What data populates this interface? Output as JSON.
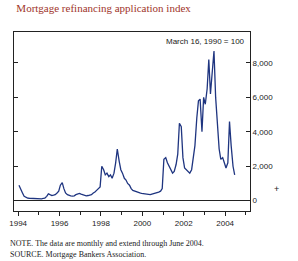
{
  "chart_data": {
    "type": "line",
    "title": "Mortgage refinancing application index",
    "subtitle": "March 16, 1990 = 100",
    "color": "#1f3580",
    "x": [
      1994.04,
      1994.13,
      1994.21,
      1994.29,
      1994.38,
      1994.46,
      1994.54,
      1994.63,
      1994.71,
      1994.79,
      1994.88,
      1994.96,
      1995.04,
      1995.13,
      1995.21,
      1995.29,
      1995.38,
      1995.46,
      1995.54,
      1995.63,
      1995.71,
      1995.79,
      1995.88,
      1995.96,
      1996.04,
      1996.13,
      1996.21,
      1996.29,
      1996.38,
      1996.46,
      1996.54,
      1996.63,
      1996.71,
      1996.79,
      1996.88,
      1996.96,
      1997.04,
      1997.13,
      1997.21,
      1997.29,
      1997.38,
      1997.46,
      1997.54,
      1997.63,
      1997.71,
      1997.79,
      1997.88,
      1997.96,
      1998.04,
      1998.13,
      1998.21,
      1998.29,
      1998.38,
      1998.46,
      1998.54,
      1998.63,
      1998.71,
      1998.79,
      1998.88,
      1998.96,
      1999.04,
      1999.13,
      1999.21,
      1999.29,
      1999.38,
      1999.46,
      1999.54,
      1999.63,
      1999.71,
      1999.79,
      1999.88,
      1999.96,
      2000.04,
      2000.13,
      2000.21,
      2000.29,
      2000.38,
      2000.46,
      2000.54,
      2000.63,
      2000.71,
      2000.79,
      2000.88,
      2000.96,
      2001.04,
      2001.13,
      2001.21,
      2001.29,
      2001.38,
      2001.46,
      2001.54,
      2001.63,
      2001.71,
      2001.79,
      2001.88,
      2001.96,
      2002.04,
      2002.13,
      2002.21,
      2002.29,
      2002.38,
      2002.46,
      2002.54,
      2002.63,
      2002.71,
      2002.79,
      2002.88,
      2002.96,
      2003.04,
      2003.13,
      2003.21,
      2003.29,
      2003.38,
      2003.46,
      2003.54,
      2003.63,
      2003.71,
      2003.79,
      2003.88,
      2003.96,
      2004.04,
      2004.13,
      2004.21,
      2004.29,
      2004.38,
      2004.46
    ],
    "values": [
      900,
      700,
      450,
      250,
      180,
      150,
      140,
      130,
      120,
      110,
      100,
      100,
      100,
      110,
      130,
      150,
      250,
      400,
      350,
      300,
      320,
      350,
      450,
      550,
      900,
      1050,
      700,
      450,
      350,
      300,
      280,
      270,
      280,
      350,
      400,
      420,
      380,
      350,
      300,
      280,
      300,
      320,
      350,
      450,
      500,
      600,
      700,
      800,
      2000,
      1800,
      1500,
      1600,
      1400,
      1500,
      1300,
      1600,
      2200,
      3000,
      2300,
      1800,
      1600,
      1300,
      1200,
      1000,
      900,
      700,
      600,
      550,
      500,
      480,
      450,
      420,
      400,
      380,
      370,
      380,
      350,
      380,
      400,
      420,
      450,
      500,
      550,
      700,
      2400,
      2500,
      2200,
      2000,
      1800,
      1600,
      1700,
      2100,
      2700,
      4500,
      4300,
      2500,
      1900,
      1800,
      1700,
      1600,
      1800,
      2400,
      3200,
      4800,
      5800,
      5900,
      4000,
      6000,
      5600,
      6500,
      8200,
      6200,
      7500,
      8700,
      6000,
      4000,
      3000,
      2400,
      2500,
      2200,
      1900,
      2200,
      4600,
      3200,
      2000,
      1500
    ],
    "xlim": [
      1993.8,
      2005.2
    ],
    "xticks": [
      1994,
      1996,
      1998,
      2000,
      2002,
      2004
    ],
    "ylim": [
      -600,
      9800
    ],
    "yticks": [
      0,
      {
        "value": 2000,
        "label": "2,000"
      },
      {
        "value": 4000,
        "label": "4,000"
      },
      {
        "value": 6000,
        "label": "6,000"
      },
      {
        "value": 8000,
        "label": "8,000"
      }
    ],
    "annotations": [
      "+"
    ],
    "notes": [
      "NOTE. The data are monthly and extend through June 2004.",
      "SOURCE. Mortgage Bankers Association."
    ],
    "grid": false
  }
}
